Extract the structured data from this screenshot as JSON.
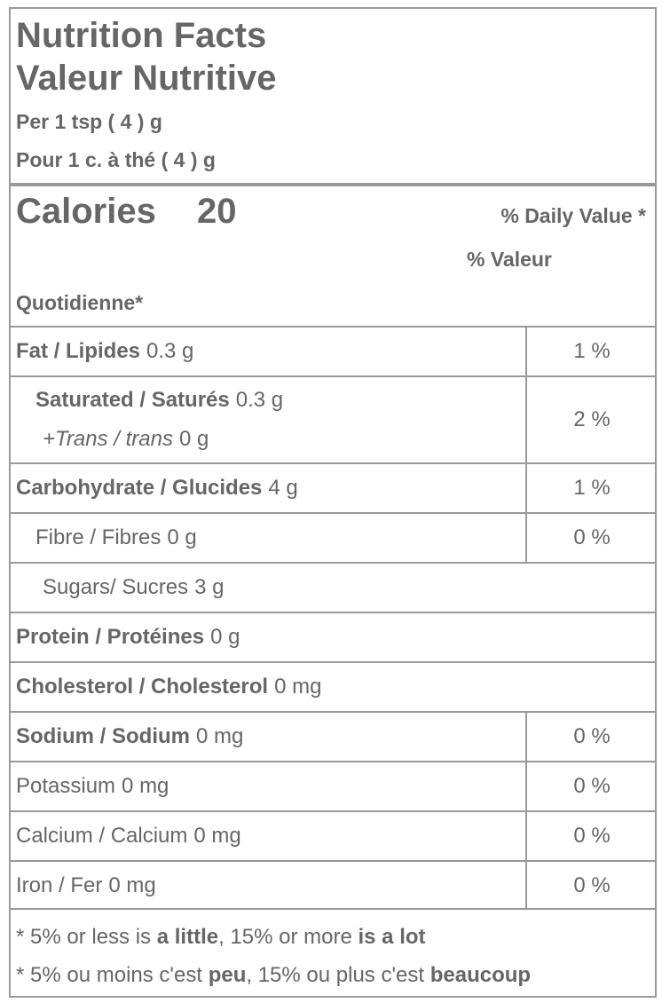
{
  "header": {
    "title": "Nutrition Facts",
    "title_fr": "Valeur Nutritive",
    "serving": "Per 1 tsp ( 4 ) g",
    "serving_fr": "Pour 1 c. à thé ( 4 ) g"
  },
  "calories": {
    "label": "Calories",
    "value": "20",
    "dv_header": [
      "% Daily Value *",
      "% Valeur",
      "Quotidienne*"
    ]
  },
  "rows": [
    {
      "name": "Fat / Lipides",
      "amount": "0.3 g",
      "dv": "1 %"
    },
    {
      "name": "Saturated / Saturés",
      "amount": "0.3 g",
      "sub_name": "+Trans / trans",
      "sub_amount": "0 g",
      "dv": "2 %"
    },
    {
      "name": "Carbohydrate / Glucides",
      "amount": "4 g",
      "dv": "1 %"
    },
    {
      "name": "Fibre / Fibres",
      "amount": "0 g",
      "dv": "0 %"
    },
    {
      "name": "Sugars/ Sucres",
      "amount": "3 g"
    },
    {
      "name": "Protein / Protéines",
      "amount": "0 g"
    },
    {
      "name": "Cholesterol / Cholesterol",
      "amount": "0 mg"
    },
    {
      "name": "Sodium / Sodium",
      "amount": "0 mg",
      "dv": "0 %"
    },
    {
      "name": "Potassium",
      "amount": "0 mg",
      "dv": "0 %"
    },
    {
      "name": "Calcium / Calcium",
      "amount": "0 mg",
      "dv": "0 %"
    },
    {
      "name": "Iron / Fer",
      "amount": "0 mg",
      "dv": "0 %"
    }
  ],
  "footnotes": [
    [
      "* 5% or less is",
      "a little",
      ", 15% or more",
      "is a lot"
    ],
    [
      "* 5% ou moins c'est",
      "peu",
      ", 15% ou plus c'est",
      "beaucoup"
    ]
  ]
}
